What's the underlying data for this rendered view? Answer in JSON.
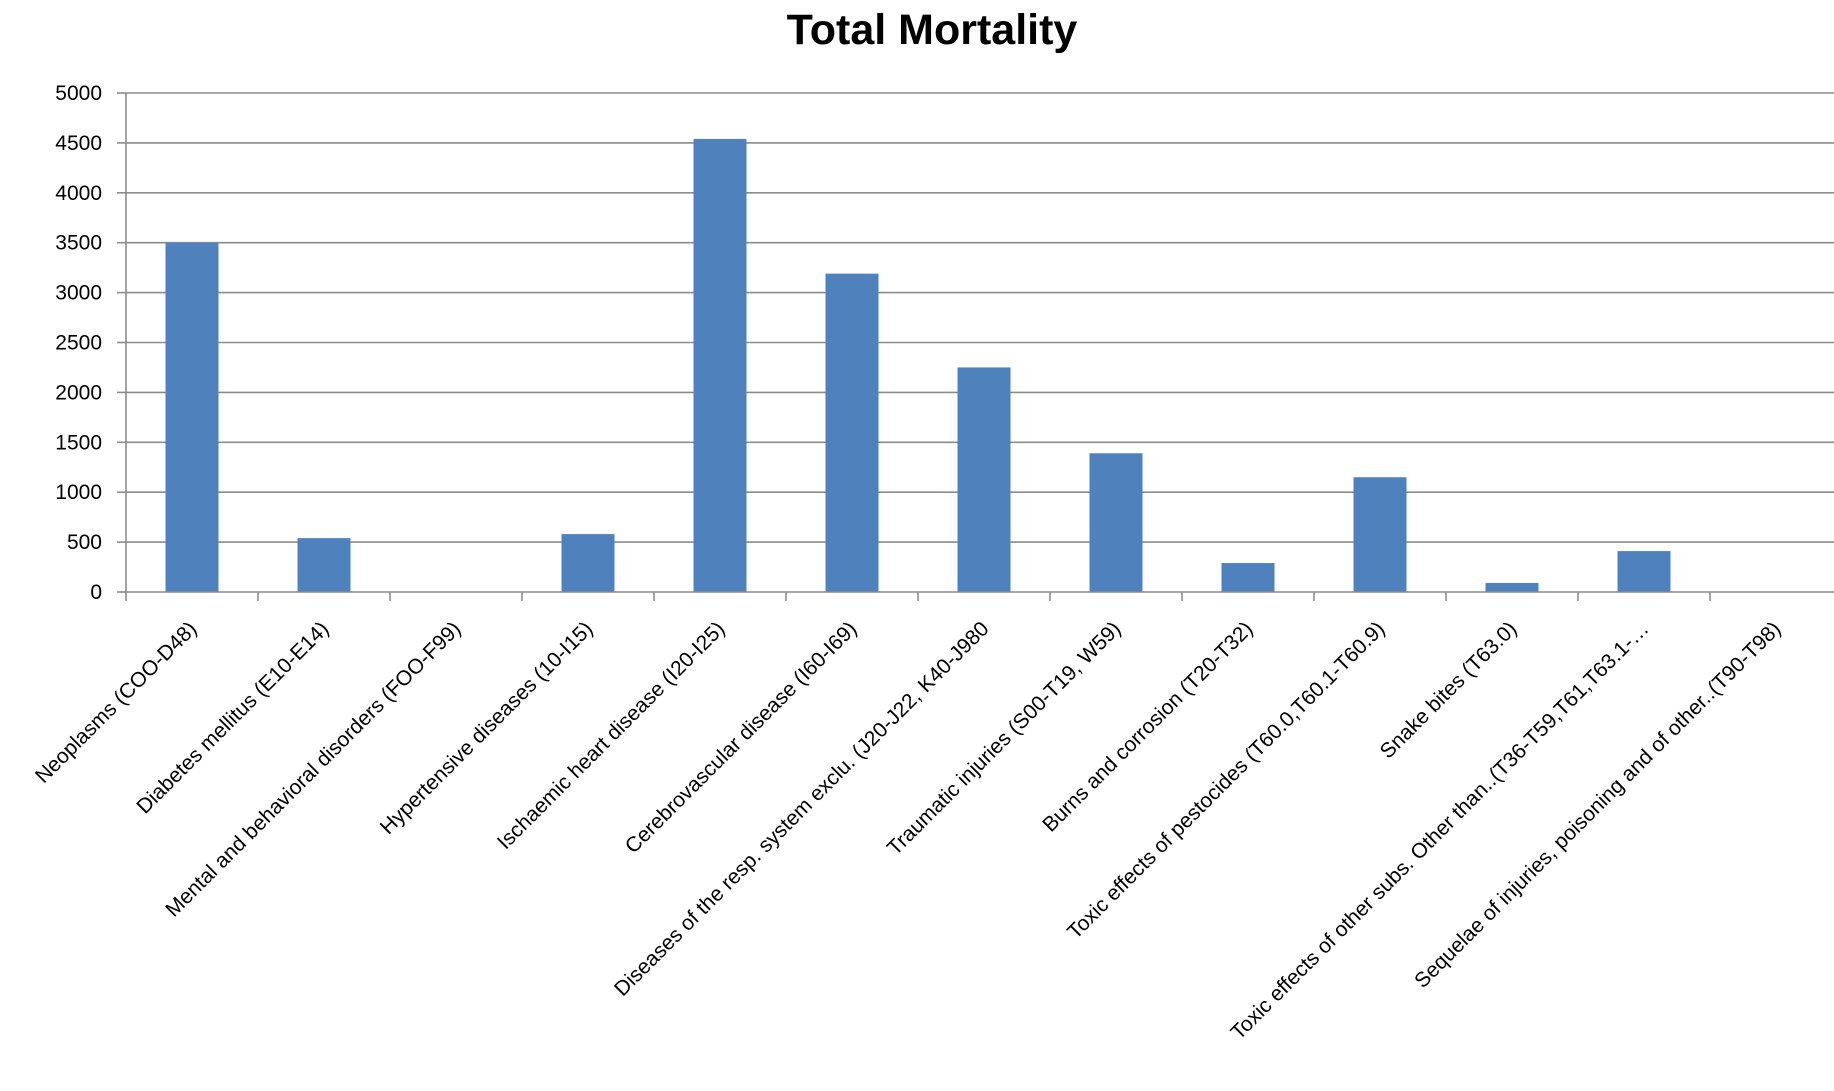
{
  "chart_data": {
    "type": "bar",
    "title": "Total Mortality",
    "xlabel": "",
    "ylabel": "",
    "ylim": [
      0,
      5000
    ],
    "yticks": [
      0,
      500,
      1000,
      1500,
      2000,
      2500,
      3000,
      3500,
      4000,
      4500,
      5000
    ],
    "grid": true,
    "legend": "none",
    "bar_color": "#4F81BD",
    "categories": [
      "Neoplasms (COO-D48)",
      "Diabetes mellitus (E10-E14)",
      "Mental and behavioral disorders (FOO-F99)",
      "Hypertensive diseases (10-I15)",
      "Ischaemic heart disease (I20-I25)",
      "Cerebrovascular disease (I60-I69)",
      "Diseases of the resp. system exclu. (J20-J22, K40-J980",
      "Traumatic injuries (S00-T19, W59)",
      "Burns and corrosion (T20-T32)",
      "Toxic effects of pestocides (T60.0,T60.1-T60.9)",
      "Snake bites (T63.0)",
      "Toxic effects of other subs. Other than..(T36-T59,T61,T63.1-…",
      "Sequelae of injuries, poisoning and of other..(T90-T98)"
    ],
    "values": [
      3500,
      540,
      0,
      580,
      4540,
      3190,
      2250,
      1390,
      290,
      1150,
      90,
      410,
      0
    ]
  }
}
